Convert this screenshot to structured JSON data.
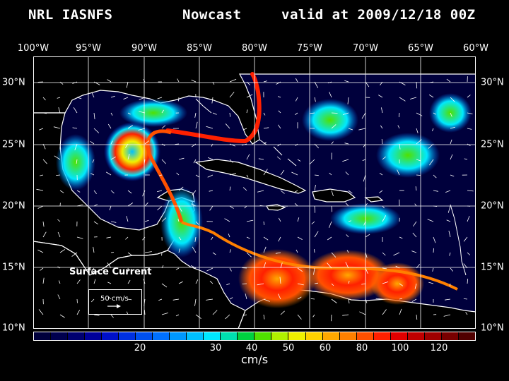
{
  "header": {
    "source": "NRL IASNFS",
    "product": "Nowcast",
    "valid": "valid at 2009/12/18 00Z"
  },
  "map": {
    "lon_labels": [
      "100°W",
      "95°W",
      "90°W",
      "85°W",
      "80°W",
      "75°W",
      "70°W",
      "65°W",
      "60°W"
    ],
    "lat_labels": [
      "30°N",
      "25°N",
      "20°N",
      "15°N",
      "10°N"
    ],
    "lon_range": [
      -100,
      -60
    ],
    "lat_range": [
      10,
      32
    ],
    "ocean_background": "#00003c",
    "land_color": "#000000",
    "coastline_color": "#ffffff",
    "grid_color": "#ffffff"
  },
  "legend": {
    "title": "Surface Current",
    "reference": "50 cm/s"
  },
  "colorbar": {
    "unit": "cm/s",
    "tick_labels": [
      "20",
      "30",
      "40",
      "50",
      "60",
      "80",
      "100",
      "120"
    ],
    "colors": [
      "#00003c",
      "#00004e",
      "#000070",
      "#00009a",
      "#0010c8",
      "#0030e0",
      "#0050f0",
      "#0070ff",
      "#0098ff",
      "#00c0ff",
      "#00e8ff",
      "#00e0b0",
      "#00d040",
      "#50e000",
      "#b0f000",
      "#f0f000",
      "#ffd000",
      "#ffa800",
      "#ff8000",
      "#ff5000",
      "#ff2000",
      "#e00000",
      "#c00000",
      "#a00000",
      "#780000",
      "#500000"
    ]
  }
}
